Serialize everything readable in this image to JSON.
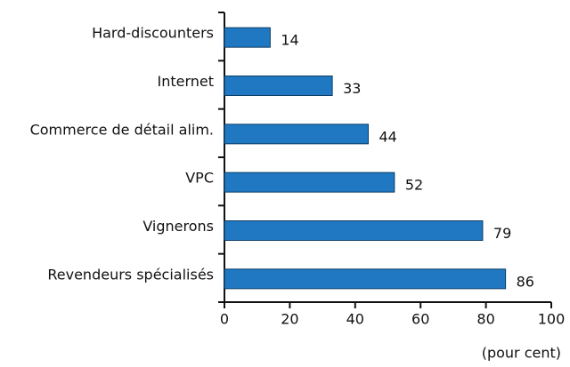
{
  "chart_data": {
    "type": "bar",
    "orientation": "horizontal",
    "categories": [
      "Hard-discounters",
      "Internet",
      "Commerce de détail alim.",
      "VPC",
      "Vignerons",
      "Revendeurs spécialisés"
    ],
    "values": [
      14,
      33,
      44,
      52,
      79,
      86
    ],
    "color": "#1f78c1",
    "xlim": [
      0,
      100
    ],
    "xticks": [
      0,
      20,
      40,
      60,
      80,
      100
    ],
    "x_label": "(pour cent)"
  }
}
